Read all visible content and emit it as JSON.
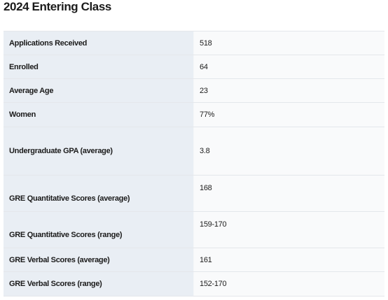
{
  "header": {
    "title": "2024 Entering Class"
  },
  "table": {
    "rows": [
      [
        "Applications Received",
        "518"
      ],
      [
        "Enrolled",
        "64"
      ],
      [
        "Average Age",
        "23"
      ],
      [
        "Women",
        "77%"
      ],
      [
        "Undergraduate GPA (average)",
        "3.8"
      ],
      [
        "GRE Quantitative Scores (average)",
        "168"
      ],
      [
        "GRE Quantitative Scores (range)",
        "159-170"
      ],
      [
        "GRE Verbal Scores (average)",
        "161"
      ],
      [
        "GRE Verbal Scores (range)",
        "152-170"
      ]
    ]
  }
}
